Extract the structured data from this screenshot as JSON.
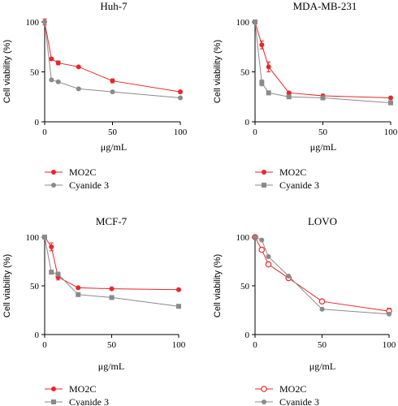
{
  "figure": {
    "shared_xlabel_top": "μg/mL",
    "shared_xlabel_bottom": "μg/mL"
  },
  "chart_data": [
    {
      "type": "line",
      "title": "Huh-7",
      "ylabel": "Cell viability (%)",
      "xlabel": "",
      "xlim": [
        0,
        100
      ],
      "ylim": [
        0,
        100
      ],
      "xticks": [
        0,
        50,
        100
      ],
      "yticks": [
        0,
        50,
        100
      ],
      "legend_position": "bottom",
      "series": [
        {
          "name": "MO2C",
          "color": "#e8262b",
          "marker": "circle-filled",
          "x": [
            0,
            5,
            10,
            25,
            50,
            100
          ],
          "y": [
            100,
            63,
            59,
            55,
            41,
            30
          ],
          "yerr": [
            3,
            1,
            2,
            1,
            2,
            1.5
          ]
        },
        {
          "name": "Cyanide 3",
          "color": "#8a8a8a",
          "marker": "circle-filled",
          "x": [
            0,
            5,
            10,
            25,
            50,
            100
          ],
          "y": [
            100,
            42,
            40,
            33,
            30,
            24
          ],
          "yerr": [
            1,
            1,
            1,
            1,
            1,
            1
          ]
        }
      ]
    },
    {
      "type": "line",
      "title": "MDA-MB-231",
      "ylabel": "Cell viability (%)",
      "xlabel": "",
      "xlim": [
        0,
        100
      ],
      "ylim": [
        0,
        100
      ],
      "xticks": [
        0,
        50,
        100
      ],
      "yticks": [
        0,
        50,
        100
      ],
      "legend_position": "bottom",
      "series": [
        {
          "name": "MO2C",
          "color": "#e8262b",
          "marker": "circle-filled",
          "x": [
            0,
            5,
            10,
            25,
            50,
            100
          ],
          "y": [
            100,
            77,
            55,
            29,
            26,
            24
          ],
          "yerr": [
            2,
            4,
            5,
            1,
            1,
            1
          ]
        },
        {
          "name": "Cyanide 3",
          "color": "#8a8a8a",
          "marker": "square-filled",
          "x": [
            0,
            5,
            10,
            25,
            50,
            100
          ],
          "y": [
            100,
            39,
            29,
            25,
            24,
            19
          ],
          "yerr": [
            1,
            3,
            2,
            1,
            1,
            1
          ]
        }
      ]
    },
    {
      "type": "line",
      "title": "MCF-7",
      "ylabel": "Cell viability (%)",
      "xlabel": "",
      "xlim": [
        0,
        100
      ],
      "ylim": [
        0,
        100
      ],
      "xticks": [
        0,
        50,
        100
      ],
      "yticks": [
        0,
        50,
        100
      ],
      "legend_position": "bottom",
      "series": [
        {
          "name": "MO2C",
          "color": "#e8262b",
          "marker": "circle-filled",
          "x": [
            0,
            5,
            10,
            25,
            50,
            100
          ],
          "y": [
            100,
            90,
            59,
            48,
            47,
            46
          ],
          "yerr": [
            2,
            4,
            3,
            1,
            1,
            1
          ]
        },
        {
          "name": "Cyanide 3",
          "color": "#8a8a8a",
          "marker": "square-filled",
          "x": [
            0,
            5,
            10,
            25,
            50,
            100
          ],
          "y": [
            100,
            64,
            62,
            41,
            38,
            29
          ],
          "yerr": [
            1,
            1,
            2,
            1,
            1,
            1
          ]
        }
      ]
    },
    {
      "type": "line",
      "title": "LOVO",
      "ylabel": "Cell viability (%)",
      "xlabel": "",
      "xlim": [
        0,
        100
      ],
      "ylim": [
        0,
        100
      ],
      "xticks": [
        0,
        50,
        100
      ],
      "yticks": [
        0,
        50,
        100
      ],
      "legend_position": "bottom",
      "series": [
        {
          "name": "MO2C",
          "color": "#e8262b",
          "marker": "circle-open",
          "x": [
            0,
            5,
            10,
            25,
            50,
            100
          ],
          "y": [
            100,
            87,
            72,
            58,
            34,
            24
          ],
          "yerr": [
            2,
            2,
            2,
            2,
            1,
            3
          ]
        },
        {
          "name": "Cyanide 3",
          "color": "#8a8a8a",
          "marker": "circle-filled",
          "x": [
            0,
            5,
            10,
            25,
            50,
            100
          ],
          "y": [
            100,
            97,
            80,
            60,
            26,
            21
          ],
          "yerr": [
            1,
            1,
            1,
            1,
            1,
            1
          ]
        }
      ]
    }
  ]
}
